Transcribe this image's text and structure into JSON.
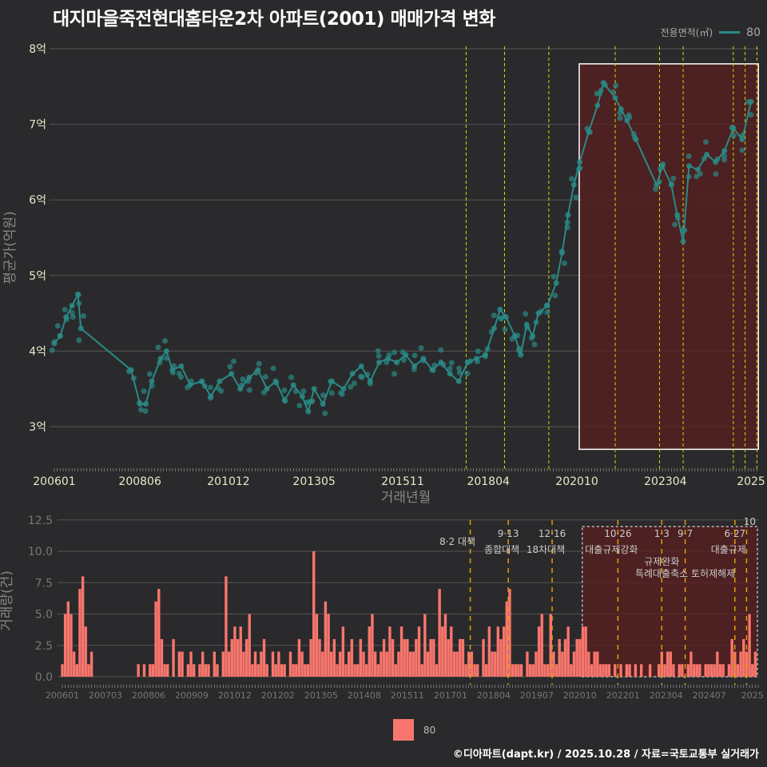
{
  "title": "대지마을죽전현대홈타운2차 아파트(2001) 매매가격 변화",
  "legend_top": {
    "title": "전용면적(㎡)",
    "label": "80",
    "color": "#2a8a86"
  },
  "legend_bottom": {
    "label": "80",
    "color": "#f8766d"
  },
  "footer": "©디아파트(dapt.kr) / 2025.10.28 / 자료=국토교통부 실거래가",
  "chart_data": [
    {
      "type": "line",
      "title": "대지마을죽전현대홈타운2차 아파트(2001) 매매가격 변화",
      "xlabel": "거래년월",
      "ylabel": "평균가(억원)",
      "ylim": [
        2.5,
        8.1
      ],
      "yticks": [
        3,
        4,
        5,
        6,
        7,
        8
      ],
      "ytick_labels": [
        "3억",
        "4억",
        "5억",
        "6억",
        "7억",
        "8억"
      ],
      "xtick_labels": [
        "200601",
        "200806",
        "201012",
        "201305",
        "201511",
        "201804",
        "202010",
        "202304",
        "2025"
      ],
      "xtick_months": [
        0,
        29,
        59,
        88,
        118,
        147,
        177,
        207,
        236
      ],
      "highlight": {
        "from_month": 177.8,
        "to_month": 238.5,
        "ymin": 2.7,
        "ymax": 7.8
      },
      "policy_months": [
        139.5,
        152.5,
        167.5,
        190,
        205,
        213,
        230,
        234,
        238
      ],
      "series": [
        {
          "name": "80",
          "points": [
            [
              0,
              4.1
            ],
            [
              2,
              4.2
            ],
            [
              4,
              4.45
            ],
            [
              6,
              4.6
            ],
            [
              8,
              4.75
            ],
            [
              9,
              4.3
            ],
            [
              26,
              3.75
            ],
            [
              29,
              3.3
            ],
            [
              31,
              3.3
            ],
            [
              33,
              3.6
            ],
            [
              36,
              3.9
            ],
            [
              38,
              4.0
            ],
            [
              40,
              3.75
            ],
            [
              43,
              3.8
            ],
            [
              46,
              3.55
            ],
            [
              50,
              3.6
            ],
            [
              53,
              3.4
            ],
            [
              56,
              3.6
            ],
            [
              60,
              3.7
            ],
            [
              63,
              3.5
            ],
            [
              66,
              3.65
            ],
            [
              69,
              3.75
            ],
            [
              72,
              3.5
            ],
            [
              75,
              3.6
            ],
            [
              78,
              3.35
            ],
            [
              81,
              3.55
            ],
            [
              84,
              3.4
            ],
            [
              86,
              3.2
            ],
            [
              88,
              3.5
            ],
            [
              91,
              3.3
            ],
            [
              94,
              3.6
            ],
            [
              98,
              3.5
            ],
            [
              101,
              3.7
            ],
            [
              104,
              3.8
            ],
            [
              107,
              3.6
            ],
            [
              110,
              3.85
            ],
            [
              113,
              3.9
            ],
            [
              116,
              3.85
            ],
            [
              119,
              3.95
            ],
            [
              122,
              3.8
            ],
            [
              125,
              3.9
            ],
            [
              128,
              3.75
            ],
            [
              131,
              3.85
            ],
            [
              134,
              3.7
            ],
            [
              137,
              3.6
            ],
            [
              140,
              3.85
            ],
            [
              143,
              3.9
            ],
            [
              146,
              3.95
            ],
            [
              149,
              4.3
            ],
            [
              151,
              4.55
            ],
            [
              153,
              4.45
            ],
            [
              156,
              4.2
            ],
            [
              158,
              3.95
            ],
            [
              160,
              4.35
            ],
            [
              162,
              4.2
            ],
            [
              164,
              4.5
            ],
            [
              167,
              4.6
            ],
            [
              170,
              4.9
            ],
            [
              172,
              5.3
            ],
            [
              174,
              5.8
            ],
            [
              176,
              6.2
            ],
            [
              178,
              6.5
            ],
            [
              181,
              6.9
            ],
            [
              184,
              7.25
            ],
            [
              186,
              7.55
            ],
            [
              190,
              7.35
            ],
            [
              192,
              7.2
            ],
            [
              194,
              7.05
            ],
            [
              197,
              6.8
            ],
            [
              204,
              6.2
            ],
            [
              206,
              6.45
            ],
            [
              209,
              6.2
            ],
            [
              211,
              5.8
            ],
            [
              213,
              5.45
            ],
            [
              215,
              6.45
            ],
            [
              218,
              6.4
            ],
            [
              221,
              6.6
            ],
            [
              224,
              6.5
            ],
            [
              227,
              6.65
            ],
            [
              230,
              6.95
            ],
            [
              233,
              6.8
            ],
            [
              236,
              7.3
            ]
          ]
        }
      ]
    },
    {
      "type": "bar",
      "xlabel": "",
      "ylabel": "거래량(건)",
      "ylim": [
        0,
        12.5
      ],
      "yticks": [
        0,
        2.5,
        5,
        7.5,
        10,
        12.5
      ],
      "ytick_labels": [
        "0.0",
        "2.5",
        "5.0",
        "7.5",
        "10.0",
        "12.5"
      ],
      "xtick_labels": [
        "200601",
        "200703",
        "200806",
        "200909",
        "201012",
        "201202",
        "201305",
        "201408",
        "201511",
        "201701",
        "201804",
        "201907",
        "202010",
        "202201",
        "202304",
        "202407",
        "2025"
      ],
      "start": "2006-01",
      "values": [
        1,
        5,
        6,
        5,
        2,
        1,
        7,
        8,
        4,
        1,
        2,
        0,
        0,
        0,
        0,
        0,
        0,
        0,
        0,
        0,
        0,
        0,
        0,
        0,
        0,
        0,
        1,
        0,
        1,
        0,
        1,
        1,
        6,
        7,
        3,
        1,
        1,
        0,
        3,
        0,
        2,
        2,
        0,
        1,
        2,
        1,
        0,
        1,
        2,
        1,
        1,
        0,
        2,
        1,
        0,
        2,
        8,
        2,
        3,
        4,
        3,
        4,
        2,
        3,
        5,
        1,
        2,
        1,
        2,
        3,
        1,
        0,
        2,
        1,
        2,
        1,
        1,
        0,
        2,
        1,
        1,
        3,
        2,
        1,
        1,
        3,
        10,
        5,
        3,
        2,
        6,
        5,
        2,
        3,
        1,
        2,
        4,
        1,
        2,
        3,
        1,
        1,
        3,
        2,
        1,
        4,
        5,
        2,
        1,
        2,
        3,
        2,
        4,
        3,
        1,
        2,
        4,
        3,
        3,
        2,
        2,
        3,
        4,
        1,
        5,
        2,
        3,
        3,
        1,
        7,
        4,
        5,
        3,
        4,
        2,
        2,
        3,
        3,
        1,
        2,
        2,
        1,
        1,
        0,
        3,
        1,
        4,
        2,
        2,
        4,
        3,
        4,
        6,
        7,
        1,
        1,
        1,
        1,
        0,
        2,
        1,
        1,
        2,
        4,
        5,
        1,
        1,
        5,
        2,
        1,
        3,
        2,
        3,
        4,
        1,
        2,
        3,
        3,
        4,
        4,
        2,
        1,
        2,
        2,
        1,
        1,
        1,
        1,
        0,
        1,
        0,
        1,
        0,
        1,
        1,
        0,
        1,
        0,
        1,
        0,
        0,
        1,
        0,
        0,
        1,
        2,
        1,
        2,
        2,
        1,
        0,
        1,
        1,
        0,
        1,
        2,
        1,
        1,
        1,
        0,
        1,
        1,
        1,
        1,
        2,
        1,
        1,
        0,
        1,
        3,
        2,
        1,
        2,
        3,
        2,
        5,
        1,
        2
      ],
      "policies": [
        {
          "month": 139.5,
          "date": "8·2 대책",
          "name": ""
        },
        {
          "month": 152.5,
          "date": "9·13",
          "name": "종합대책"
        },
        {
          "month": 167.5,
          "date": "12·16",
          "name": "18차대책"
        },
        {
          "month": 190,
          "date": "10·26",
          "name": "대출규제강화"
        },
        {
          "month": 205,
          "date": "1·3",
          "name": "규제완화"
        },
        {
          "month": 213,
          "date": "9·7",
          "name": "특례대출축소 토허제해제"
        },
        {
          "month": 230,
          "date": "6·27",
          "name": "대출규제"
        },
        {
          "month": 234,
          "date": "10",
          "name": ""
        }
      ],
      "highlight_from_month": 177.8
    }
  ]
}
